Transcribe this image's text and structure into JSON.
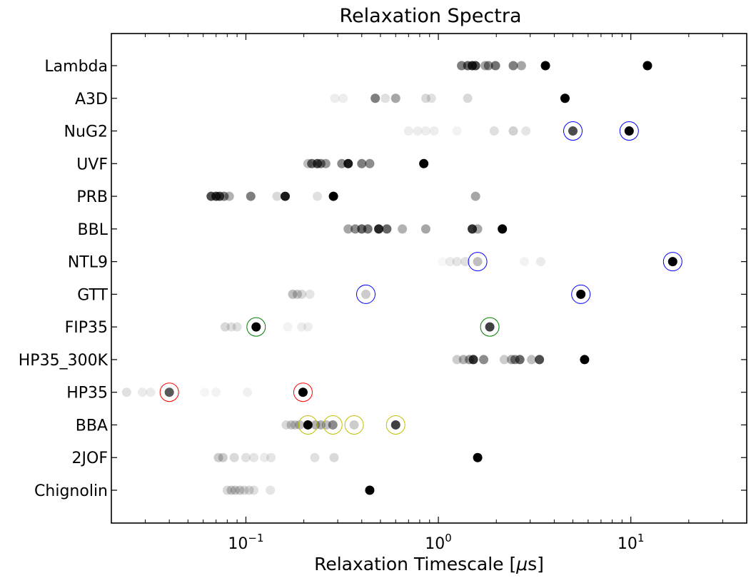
{
  "chart_data": {
    "type": "scatter",
    "title": "Relaxation Spectra",
    "xlabel": "Relaxation Timescale [μs]",
    "xlabel_parts": {
      "before": "Relaxation Timescale [",
      "mu": "μ",
      "after": "s]"
    },
    "ylabel": "",
    "xscale": "log",
    "xlim": [
      0.02,
      40
    ],
    "x_ticks": [
      {
        "value": 0.1,
        "base": "10",
        "exp": "−1"
      },
      {
        "value": 1,
        "base": "10",
        "exp": "0"
      },
      {
        "value": 10,
        "base": "10",
        "exp": "1"
      }
    ],
    "grid": false,
    "categories": [
      "Lambda",
      "A3D",
      "NuG2",
      "UVF",
      "PRB",
      "BBL",
      "NTL9",
      "GTT",
      "FIP35",
      "HP35_300K",
      "HP35",
      "BBA",
      "2JOF",
      "Chignolin"
    ],
    "marker_color": "#000000",
    "highlight_colors": {
      "blue": "#0000ff",
      "green": "#008000",
      "red": "#ff0000",
      "yellow": "#bfbf00"
    },
    "series": [
      {
        "category": "Lambda",
        "points": [
          {
            "x": 1.32,
            "opacity": 0.5
          },
          {
            "x": 1.42,
            "opacity": 0.6
          },
          {
            "x": 1.5,
            "opacity": 0.8
          },
          {
            "x": 1.56,
            "opacity": 0.7
          },
          {
            "x": 1.75,
            "opacity": 0.35
          },
          {
            "x": 1.82,
            "opacity": 0.45
          },
          {
            "x": 1.98,
            "opacity": 0.55
          },
          {
            "x": 2.45,
            "opacity": 0.5
          },
          {
            "x": 2.7,
            "opacity": 0.35
          },
          {
            "x": 3.6,
            "opacity": 1.0
          },
          {
            "x": 12.2,
            "opacity": 1.0
          }
        ]
      },
      {
        "category": "A3D",
        "points": [
          {
            "x": 0.29,
            "opacity": 0.07
          },
          {
            "x": 0.32,
            "opacity": 0.07
          },
          {
            "x": 0.47,
            "opacity": 0.5
          },
          {
            "x": 0.53,
            "opacity": 0.12
          },
          {
            "x": 0.6,
            "opacity": 0.35
          },
          {
            "x": 0.86,
            "opacity": 0.15
          },
          {
            "x": 0.92,
            "opacity": 0.12
          },
          {
            "x": 1.42,
            "opacity": 0.15
          },
          {
            "x": 4.55,
            "opacity": 1.0
          }
        ]
      },
      {
        "category": "NuG2",
        "points": [
          {
            "x": 0.7,
            "opacity": 0.07
          },
          {
            "x": 0.78,
            "opacity": 0.07
          },
          {
            "x": 0.86,
            "opacity": 0.07
          },
          {
            "x": 0.95,
            "opacity": 0.07
          },
          {
            "x": 1.25,
            "opacity": 0.05
          },
          {
            "x": 1.95,
            "opacity": 0.12
          },
          {
            "x": 2.45,
            "opacity": 0.18
          },
          {
            "x": 2.85,
            "opacity": 0.1
          },
          {
            "x": 5.0,
            "opacity": 0.7,
            "ring": "blue"
          },
          {
            "x": 9.8,
            "opacity": 1.0,
            "ring": "blue"
          }
        ]
      },
      {
        "category": "UVF",
        "points": [
          {
            "x": 0.21,
            "opacity": 0.25
          },
          {
            "x": 0.22,
            "opacity": 0.6
          },
          {
            "x": 0.235,
            "opacity": 0.7
          },
          {
            "x": 0.245,
            "opacity": 0.5
          },
          {
            "x": 0.26,
            "opacity": 0.4
          },
          {
            "x": 0.315,
            "opacity": 0.45
          },
          {
            "x": 0.34,
            "opacity": 0.9
          },
          {
            "x": 0.4,
            "opacity": 0.5
          },
          {
            "x": 0.44,
            "opacity": 0.45
          },
          {
            "x": 0.84,
            "opacity": 1.0
          }
        ]
      },
      {
        "category": "PRB",
        "points": [
          {
            "x": 0.066,
            "opacity": 0.7
          },
          {
            "x": 0.07,
            "opacity": 0.75
          },
          {
            "x": 0.073,
            "opacity": 0.7
          },
          {
            "x": 0.077,
            "opacity": 0.5
          },
          {
            "x": 0.082,
            "opacity": 0.3
          },
          {
            "x": 0.106,
            "opacity": 0.5
          },
          {
            "x": 0.145,
            "opacity": 0.15
          },
          {
            "x": 0.16,
            "opacity": 0.9
          },
          {
            "x": 0.235,
            "opacity": 0.12
          },
          {
            "x": 0.285,
            "opacity": 1.0
          },
          {
            "x": 1.56,
            "opacity": 0.35
          }
        ]
      },
      {
        "category": "BBL",
        "points": [
          {
            "x": 0.34,
            "opacity": 0.35
          },
          {
            "x": 0.37,
            "opacity": 0.45
          },
          {
            "x": 0.4,
            "opacity": 0.6
          },
          {
            "x": 0.43,
            "opacity": 0.55
          },
          {
            "x": 0.49,
            "opacity": 0.85
          },
          {
            "x": 0.54,
            "opacity": 0.6
          },
          {
            "x": 0.65,
            "opacity": 0.3
          },
          {
            "x": 0.86,
            "opacity": 0.35
          },
          {
            "x": 1.5,
            "opacity": 0.8
          },
          {
            "x": 1.6,
            "opacity": 0.35
          },
          {
            "x": 2.15,
            "opacity": 1.0
          }
        ]
      },
      {
        "category": "NTL9",
        "points": [
          {
            "x": 1.05,
            "opacity": 0.03
          },
          {
            "x": 1.15,
            "opacity": 0.08
          },
          {
            "x": 1.25,
            "opacity": 0.1
          },
          {
            "x": 1.38,
            "opacity": 0.12
          },
          {
            "x": 1.6,
            "opacity": 0.25,
            "ring": "blue"
          },
          {
            "x": 2.8,
            "opacity": 0.05
          },
          {
            "x": 3.4,
            "opacity": 0.08
          },
          {
            "x": 16.5,
            "opacity": 1.0,
            "ring": "blue"
          }
        ]
      },
      {
        "category": "GTT",
        "points": [
          {
            "x": 0.175,
            "opacity": 0.25
          },
          {
            "x": 0.185,
            "opacity": 0.2
          },
          {
            "x": 0.195,
            "opacity": 0.15
          },
          {
            "x": 0.215,
            "opacity": 0.1
          },
          {
            "x": 0.42,
            "opacity": 0.2,
            "ring": "blue"
          },
          {
            "x": 5.5,
            "opacity": 1.0,
            "ring": "blue"
          }
        ]
      },
      {
        "category": "FIP35",
        "points": [
          {
            "x": 0.078,
            "opacity": 0.15
          },
          {
            "x": 0.084,
            "opacity": 0.12
          },
          {
            "x": 0.09,
            "opacity": 0.12
          },
          {
            "x": 0.113,
            "opacity": 1.0,
            "ring": "green"
          },
          {
            "x": 0.165,
            "opacity": 0.05
          },
          {
            "x": 0.195,
            "opacity": 0.07
          },
          {
            "x": 0.21,
            "opacity": 0.07
          },
          {
            "x": 1.85,
            "opacity": 0.75,
            "ring": "green"
          }
        ]
      },
      {
        "category": "HP35_300K",
        "points": [
          {
            "x": 1.25,
            "opacity": 0.2
          },
          {
            "x": 1.35,
            "opacity": 0.3
          },
          {
            "x": 1.45,
            "opacity": 0.4
          },
          {
            "x": 1.52,
            "opacity": 0.8
          },
          {
            "x": 1.72,
            "opacity": 0.45
          },
          {
            "x": 2.2,
            "opacity": 0.2
          },
          {
            "x": 2.4,
            "opacity": 0.35
          },
          {
            "x": 2.5,
            "opacity": 0.45
          },
          {
            "x": 2.65,
            "opacity": 0.6
          },
          {
            "x": 3.05,
            "opacity": 0.25
          },
          {
            "x": 3.35,
            "opacity": 0.7
          },
          {
            "x": 5.75,
            "opacity": 1.0
          }
        ]
      },
      {
        "category": "HP35",
        "points": [
          {
            "x": 0.024,
            "opacity": 0.12
          },
          {
            "x": 0.029,
            "opacity": 0.08
          },
          {
            "x": 0.032,
            "opacity": 0.08
          },
          {
            "x": 0.04,
            "opacity": 0.65,
            "ring": "red"
          },
          {
            "x": 0.061,
            "opacity": 0.04
          },
          {
            "x": 0.07,
            "opacity": 0.05
          },
          {
            "x": 0.102,
            "opacity": 0.06
          },
          {
            "x": 0.198,
            "opacity": 1.0,
            "ring": "red"
          }
        ]
      },
      {
        "category": "BBA",
        "points": [
          {
            "x": 0.162,
            "opacity": 0.15
          },
          {
            "x": 0.172,
            "opacity": 0.2
          },
          {
            "x": 0.18,
            "opacity": 0.2
          },
          {
            "x": 0.19,
            "opacity": 0.25
          },
          {
            "x": 0.21,
            "opacity": 1.0,
            "ring": "yellow"
          },
          {
            "x": 0.23,
            "opacity": 0.3
          },
          {
            "x": 0.245,
            "opacity": 0.3
          },
          {
            "x": 0.262,
            "opacity": 0.25
          },
          {
            "x": 0.283,
            "opacity": 0.45,
            "ring": "yellow"
          },
          {
            "x": 0.365,
            "opacity": 0.2,
            "ring": "yellow"
          },
          {
            "x": 0.6,
            "opacity": 0.75,
            "ring": "yellow"
          }
        ]
      },
      {
        "category": "2JOF",
        "points": [
          {
            "x": 0.072,
            "opacity": 0.2
          },
          {
            "x": 0.076,
            "opacity": 0.2
          },
          {
            "x": 0.087,
            "opacity": 0.15
          },
          {
            "x": 0.1,
            "opacity": 0.12
          },
          {
            "x": 0.11,
            "opacity": 0.1
          },
          {
            "x": 0.125,
            "opacity": 0.08
          },
          {
            "x": 0.135,
            "opacity": 0.1
          },
          {
            "x": 0.228,
            "opacity": 0.12
          },
          {
            "x": 0.287,
            "opacity": 0.15
          },
          {
            "x": 1.6,
            "opacity": 1.0
          }
        ]
      },
      {
        "category": "Chignolin",
        "points": [
          {
            "x": 0.08,
            "opacity": 0.15
          },
          {
            "x": 0.084,
            "opacity": 0.2
          },
          {
            "x": 0.088,
            "opacity": 0.2
          },
          {
            "x": 0.093,
            "opacity": 0.2
          },
          {
            "x": 0.098,
            "opacity": 0.15
          },
          {
            "x": 0.104,
            "opacity": 0.15
          },
          {
            "x": 0.11,
            "opacity": 0.12
          },
          {
            "x": 0.134,
            "opacity": 0.1
          },
          {
            "x": 0.44,
            "opacity": 1.0
          }
        ]
      }
    ]
  }
}
